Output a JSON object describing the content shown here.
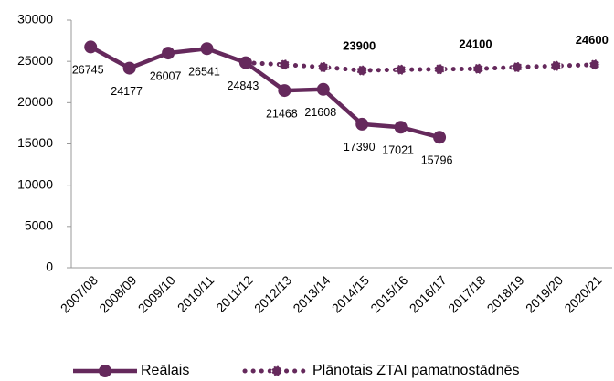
{
  "chart_data": {
    "type": "line",
    "categories": [
      "2007/08",
      "2008/09",
      "2009/10",
      "2010/11",
      "2011/12",
      "2012/13",
      "2013/14",
      "2014/15",
      "2015/16",
      "2016/17",
      "2017/18",
      "2018/19",
      "2019/20",
      "2020/21"
    ],
    "series": [
      {
        "name": "Reālais",
        "color": "#65295c",
        "style": "solid",
        "values": [
          26745,
          24177,
          26007,
          26541,
          24843,
          21468,
          21608,
          17390,
          17021,
          15796,
          null,
          null,
          null,
          null
        ]
      },
      {
        "name": "Plānotais ZTAI pamatnostādnēs",
        "color": "#65295c",
        "style": "dotted",
        "values": [
          null,
          null,
          null,
          null,
          24843,
          24600,
          24300,
          23900,
          24000,
          24050,
          24100,
          24300,
          24450,
          24600
        ],
        "value_labels": [
          null,
          null,
          null,
          null,
          null,
          null,
          null,
          "23900",
          null,
          null,
          "24100",
          null,
          null,
          "24600"
        ]
      }
    ],
    "ylim": [
      0,
      30000
    ],
    "yticks": [
      0,
      5000,
      10000,
      15000,
      20000,
      25000,
      30000
    ],
    "grid": false,
    "legend": "bottom"
  }
}
